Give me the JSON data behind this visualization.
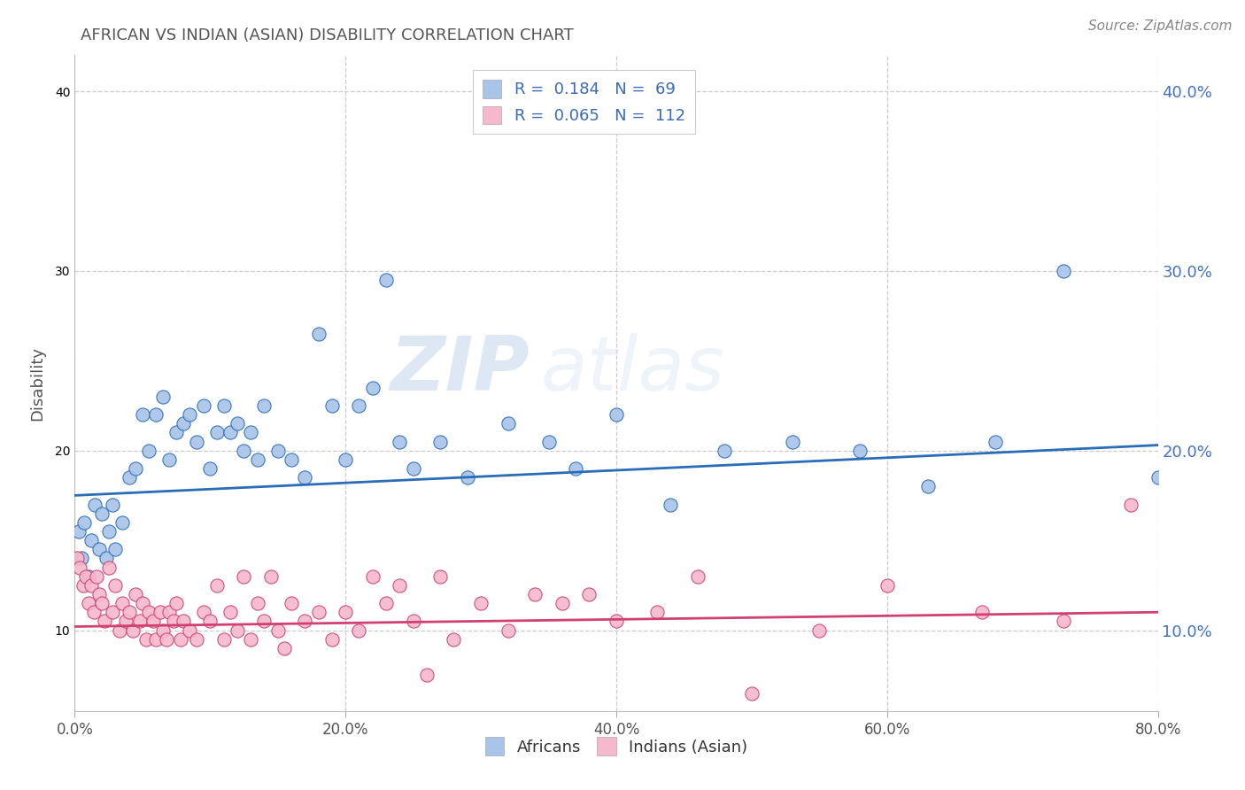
{
  "title": "AFRICAN VS INDIAN (ASIAN) DISABILITY CORRELATION CHART",
  "source": "Source: ZipAtlas.com",
  "ylabel": "Disability",
  "african_color": "#a8c4e8",
  "african_color_line": "#2b6cb8",
  "indian_color": "#f5b8cc",
  "indian_color_line": "#d04070",
  "legend_african_R": "0.184",
  "legend_african_N": "69",
  "legend_indian_R": "0.065",
  "legend_indian_N": "112",
  "watermark_top": "ZIP",
  "watermark_bot": "atlas",
  "background_color": "#ffffff",
  "grid_color": "#cccccc",
  "xlim": [
    0,
    80
  ],
  "ylim": [
    5.5,
    42
  ],
  "xlabel_vals": [
    0.0,
    20.0,
    40.0,
    60.0,
    80.0
  ],
  "xlabel_ticks": [
    "0.0%",
    "20.0%",
    "40.0%",
    "60.0%",
    "80.0%"
  ],
  "ylabel_vals": [
    10.0,
    20.0,
    30.0,
    40.0
  ],
  "ylabel_ticks": [
    "10.0%",
    "20.0%",
    "30.0%",
    "40.0%"
  ],
  "africans_x": [
    0.3,
    0.5,
    0.7,
    1.0,
    1.2,
    1.5,
    1.8,
    2.0,
    2.3,
    2.5,
    2.8,
    3.0,
    3.5,
    4.0,
    4.5,
    5.0,
    5.5,
    6.0,
    6.5,
    7.0,
    7.5,
    8.0,
    8.5,
    9.0,
    9.5,
    10.0,
    10.5,
    11.0,
    11.5,
    12.0,
    12.5,
    13.0,
    13.5,
    14.0,
    15.0,
    16.0,
    17.0,
    18.0,
    19.0,
    20.0,
    21.0,
    22.0,
    23.0,
    24.0,
    25.0,
    27.0,
    29.0,
    32.0,
    35.0,
    37.0,
    40.0,
    44.0,
    48.0,
    53.0,
    58.0,
    63.0,
    68.0,
    73.0,
    80.0
  ],
  "africans_y": [
    15.5,
    14.0,
    16.0,
    13.0,
    15.0,
    17.0,
    14.5,
    16.5,
    14.0,
    15.5,
    17.0,
    14.5,
    16.0,
    18.5,
    19.0,
    22.0,
    20.0,
    22.0,
    23.0,
    19.5,
    21.0,
    21.5,
    22.0,
    20.5,
    22.5,
    19.0,
    21.0,
    22.5,
    21.0,
    21.5,
    20.0,
    21.0,
    19.5,
    22.5,
    20.0,
    19.5,
    18.5,
    26.5,
    22.5,
    19.5,
    22.5,
    23.5,
    29.5,
    20.5,
    19.0,
    20.5,
    18.5,
    21.5,
    20.5,
    19.0,
    22.0,
    17.0,
    20.0,
    20.5,
    20.0,
    18.0,
    20.5,
    30.0,
    18.5
  ],
  "indians_x": [
    0.2,
    0.4,
    0.6,
    0.8,
    1.0,
    1.2,
    1.4,
    1.6,
    1.8,
    2.0,
    2.2,
    2.5,
    2.8,
    3.0,
    3.3,
    3.5,
    3.8,
    4.0,
    4.3,
    4.5,
    4.8,
    5.0,
    5.3,
    5.5,
    5.8,
    6.0,
    6.3,
    6.5,
    6.8,
    7.0,
    7.3,
    7.5,
    7.8,
    8.0,
    8.5,
    9.0,
    9.5,
    10.0,
    10.5,
    11.0,
    11.5,
    12.0,
    12.5,
    13.0,
    13.5,
    14.0,
    14.5,
    15.0,
    15.5,
    16.0,
    17.0,
    18.0,
    19.0,
    20.0,
    21.0,
    22.0,
    23.0,
    24.0,
    25.0,
    26.0,
    27.0,
    28.0,
    30.0,
    32.0,
    34.0,
    36.0,
    38.0,
    40.0,
    43.0,
    46.0,
    50.0,
    55.0,
    60.0,
    67.0,
    73.0,
    78.0
  ],
  "indians_y": [
    14.0,
    13.5,
    12.5,
    13.0,
    11.5,
    12.5,
    11.0,
    13.0,
    12.0,
    11.5,
    10.5,
    13.5,
    11.0,
    12.5,
    10.0,
    11.5,
    10.5,
    11.0,
    10.0,
    12.0,
    10.5,
    11.5,
    9.5,
    11.0,
    10.5,
    9.5,
    11.0,
    10.0,
    9.5,
    11.0,
    10.5,
    11.5,
    9.5,
    10.5,
    10.0,
    9.5,
    11.0,
    10.5,
    12.5,
    9.5,
    11.0,
    10.0,
    13.0,
    9.5,
    11.5,
    10.5,
    13.0,
    10.0,
    9.0,
    11.5,
    10.5,
    11.0,
    9.5,
    11.0,
    10.0,
    13.0,
    11.5,
    12.5,
    10.5,
    7.5,
    13.0,
    9.5,
    11.5,
    10.0,
    12.0,
    11.5,
    12.0,
    10.5,
    11.0,
    13.0,
    6.5,
    10.0,
    12.5,
    11.0,
    10.5,
    17.0
  ]
}
